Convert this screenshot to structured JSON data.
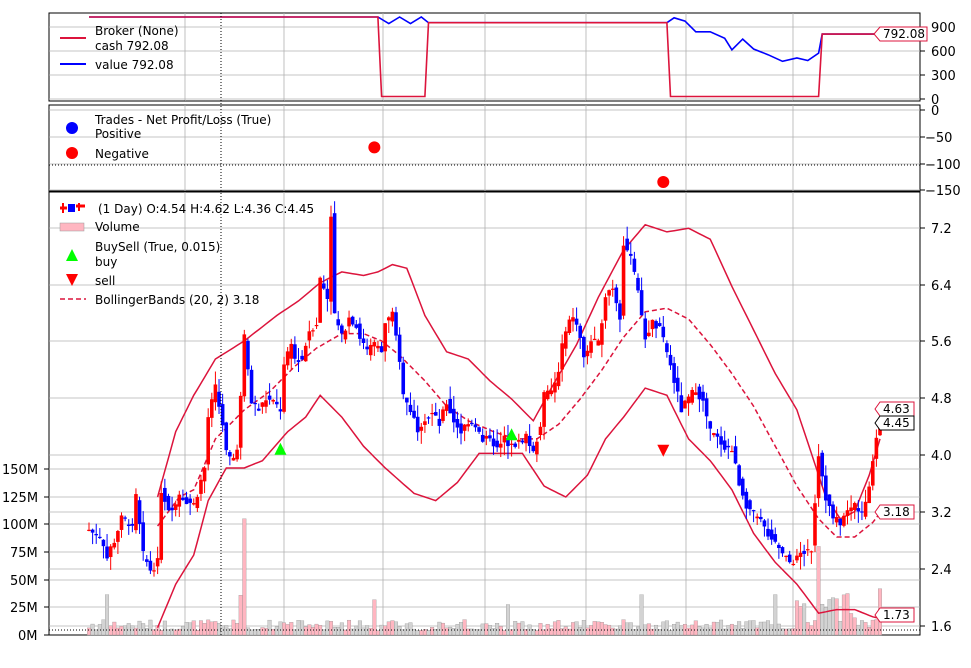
{
  "colors": {
    "up": "#ff0000",
    "down": "#0000ff",
    "bands": "#dc143c",
    "cash": "#dc143c",
    "value": "#0000ff",
    "buy": "#00ff00",
    "sell": "#ff0000",
    "positive": "#0000ff",
    "negative": "#ff0000",
    "grid": "#b0b0b0",
    "vol_up": "#ffb6c1",
    "vol_down": "#d3d3d3"
  },
  "chart_data": [
    {
      "type": "line",
      "panel": "broker",
      "series": [
        {
          "name": "cash 792.08",
          "color": "cash"
        },
        {
          "name": "value 792.08",
          "color": "value"
        }
      ],
      "legend": {
        "title": "Broker (None)",
        "items": [
          "cash 792.08",
          "value 792.08"
        ]
      },
      "last_value_tag": "792.08",
      "yticks": [
        "900",
        "600",
        "300",
        "0"
      ],
      "ylim": [
        0,
        1000
      ]
    },
    {
      "type": "scatter",
      "panel": "trades",
      "legend": {
        "title": "Trades - Net Profit/Loss (True)",
        "items": [
          "Positive",
          "Negative"
        ]
      },
      "points": [
        {
          "x": 79,
          "y": -70,
          "kind": "negative"
        },
        {
          "x": 159,
          "y": -135,
          "kind": "negative"
        }
      ],
      "yticks": [
        "0",
        "−50",
        "−100",
        "−150"
      ],
      "ylim": [
        -160,
        0
      ]
    },
    {
      "type": "candlestick",
      "panel": "price",
      "legend": {
        "ohlc": "(1 Day) O:4.54 H:4.62 L:4.36 C:4.45",
        "volume": "Volume",
        "buysell": "BuySell (True, 0.015)",
        "buy": "buy",
        "sell": "sell",
        "bollinger": "BollingerBands (20, 2) 3.18"
      },
      "price_yticks": [
        "7.2",
        "6.4",
        "5.6",
        "4.8",
        "4.0",
        "3.2",
        "2.4",
        "1.6"
      ],
      "volume_yticks": [
        "150M",
        "125M",
        "100M",
        "75M",
        "50M",
        "25M",
        "0M"
      ],
      "ylim": [
        1.5,
        7.6
      ],
      "volume_ylim": [
        0,
        160
      ],
      "tags": {
        "high": "4.63",
        "close": "4.45",
        "mid_band": "3.18",
        "low_band": "1.73"
      },
      "buy_markers": [
        {
          "x": 53,
          "y": 4.05
        },
        {
          "x": 117,
          "y": 4.25
        }
      ],
      "sell_markers": [
        {
          "x": 159,
          "y": 4.05
        }
      ],
      "price_anchors": [
        [
          0,
          2.95
        ],
        [
          3,
          2.85
        ],
        [
          5,
          2.6
        ],
        [
          7,
          2.8
        ],
        [
          9,
          3.1
        ],
        [
          11,
          3.05
        ],
        [
          12,
          2.95
        ],
        [
          13,
          3.4
        ],
        [
          15,
          2.6
        ],
        [
          17,
          2.4
        ],
        [
          19,
          2.5
        ],
        [
          20,
          3.5
        ],
        [
          22,
          3.25
        ],
        [
          24,
          3.3
        ],
        [
          25,
          3.45
        ],
        [
          27,
          3.35
        ],
        [
          29,
          3.3
        ],
        [
          30,
          3.45
        ],
        [
          32,
          3.8
        ],
        [
          33,
          4.5
        ],
        [
          35,
          4.9
        ],
        [
          37,
          4.4
        ],
        [
          38,
          4.0
        ],
        [
          39,
          3.9
        ],
        [
          41,
          4.05
        ],
        [
          43,
          5.6
        ],
        [
          45,
          4.7
        ],
        [
          47,
          4.6
        ],
        [
          49,
          4.75
        ],
        [
          51,
          4.7
        ],
        [
          53,
          4.6
        ],
        [
          54,
          5.2
        ],
        [
          56,
          5.5
        ],
        [
          57,
          5.3
        ],
        [
          59,
          5.3
        ],
        [
          61,
          5.7
        ],
        [
          63,
          5.8
        ],
        [
          64,
          6.4
        ],
        [
          66,
          6.15
        ],
        [
          67,
          7.3
        ],
        [
          68,
          5.9
        ],
        [
          70,
          5.6
        ],
        [
          72,
          5.9
        ],
        [
          74,
          5.75
        ],
        [
          75,
          5.6
        ],
        [
          77,
          5.4
        ],
        [
          79,
          5.5
        ],
        [
          81,
          5.4
        ],
        [
          82,
          5.8
        ],
        [
          84,
          5.9
        ],
        [
          86,
          5.3
        ],
        [
          87,
          4.8
        ],
        [
          89,
          4.6
        ],
        [
          91,
          4.35
        ],
        [
          93,
          4.5
        ],
        [
          95,
          4.55
        ],
        [
          97,
          4.4
        ],
        [
          99,
          4.7
        ],
        [
          101,
          4.45
        ],
        [
          103,
          4.3
        ],
        [
          105,
          4.45
        ],
        [
          107,
          4.4
        ],
        [
          109,
          4.15
        ],
        [
          111,
          4.25
        ],
        [
          113,
          4.05
        ],
        [
          115,
          4.2
        ],
        [
          117,
          4.1
        ],
        [
          119,
          4.15
        ],
        [
          121,
          4.25
        ],
        [
          123,
          4.0
        ],
        [
          125,
          4.4
        ],
        [
          126,
          4.8
        ],
        [
          128,
          4.85
        ],
        [
          130,
          5.1
        ],
        [
          131,
          5.5
        ],
        [
          133,
          5.8
        ],
        [
          134,
          5.9
        ],
        [
          136,
          5.6
        ],
        [
          137,
          5.3
        ],
        [
          139,
          5.55
        ],
        [
          141,
          5.5
        ],
        [
          143,
          6.2
        ],
        [
          145,
          6.3
        ],
        [
          147,
          5.9
        ],
        [
          148,
          6.9
        ],
        [
          150,
          6.7
        ],
        [
          152,
          6.2
        ],
        [
          154,
          5.6
        ],
        [
          156,
          5.8
        ],
        [
          158,
          5.7
        ],
        [
          160,
          5.4
        ],
        [
          162,
          5.0
        ],
        [
          164,
          4.6
        ],
        [
          166,
          4.75
        ],
        [
          168,
          4.9
        ],
        [
          170,
          4.7
        ],
        [
          172,
          4.3
        ],
        [
          174,
          4.2
        ],
        [
          176,
          4.1
        ],
        [
          178,
          4.05
        ],
        [
          180,
          3.6
        ],
        [
          182,
          3.3
        ],
        [
          184,
          3.15
        ],
        [
          186,
          3.05
        ],
        [
          188,
          2.9
        ],
        [
          190,
          2.8
        ],
        [
          192,
          2.6
        ],
        [
          194,
          2.5
        ],
        [
          196,
          2.55
        ],
        [
          198,
          2.65
        ],
        [
          200,
          2.7
        ],
        [
          202,
          4.0
        ],
        [
          204,
          3.4
        ],
        [
          206,
          3.1
        ],
        [
          208,
          3.05
        ],
        [
          210,
          3.2
        ],
        [
          212,
          3.3
        ],
        [
          214,
          3.15
        ],
        [
          216,
          3.5
        ],
        [
          217,
          3.95
        ],
        [
          219,
          4.5
        ]
      ],
      "bb_mid_anchors": [
        [
          19,
          3.0
        ],
        [
          25,
          3.4
        ],
        [
          29,
          3.5
        ],
        [
          35,
          4.2
        ],
        [
          43,
          4.6
        ],
        [
          50,
          4.85
        ],
        [
          57,
          5.2
        ],
        [
          63,
          5.45
        ],
        [
          70,
          5.65
        ],
        [
          76,
          5.65
        ],
        [
          81,
          5.55
        ],
        [
          86,
          5.35
        ],
        [
          93,
          5.0
        ],
        [
          99,
          4.65
        ],
        [
          105,
          4.45
        ],
        [
          112,
          4.3
        ],
        [
          118,
          4.2
        ],
        [
          124,
          4.2
        ],
        [
          130,
          4.4
        ],
        [
          136,
          4.75
        ],
        [
          142,
          5.15
        ],
        [
          148,
          5.6
        ],
        [
          154,
          5.95
        ],
        [
          160,
          6.0
        ],
        [
          166,
          5.85
        ],
        [
          172,
          5.5
        ],
        [
          178,
          5.1
        ],
        [
          184,
          4.65
        ],
        [
          190,
          4.1
        ],
        [
          196,
          3.55
        ],
        [
          202,
          3.1
        ],
        [
          207,
          2.85
        ],
        [
          212,
          2.85
        ],
        [
          217,
          3.05
        ],
        [
          219,
          3.18
        ]
      ],
      "bb_up_anchors": [
        [
          19,
          3.4
        ],
        [
          24,
          4.3
        ],
        [
          29,
          4.8
        ],
        [
          35,
          5.3
        ],
        [
          43,
          5.55
        ],
        [
          52,
          5.9
        ],
        [
          58,
          6.1
        ],
        [
          64,
          6.35
        ],
        [
          70,
          6.5
        ],
        [
          76,
          6.45
        ],
        [
          80,
          6.5
        ],
        [
          84,
          6.6
        ],
        [
          88,
          6.55
        ],
        [
          93,
          5.9
        ],
        [
          99,
          5.4
        ],
        [
          105,
          5.3
        ],
        [
          111,
          5.0
        ],
        [
          117,
          4.75
        ],
        [
          123,
          4.45
        ],
        [
          128,
          4.9
        ],
        [
          135,
          5.5
        ],
        [
          141,
          6.15
        ],
        [
          148,
          6.8
        ],
        [
          154,
          7.15
        ],
        [
          160,
          7.05
        ],
        [
          166,
          7.1
        ],
        [
          172,
          6.95
        ],
        [
          178,
          6.3
        ],
        [
          184,
          5.7
        ],
        [
          190,
          5.1
        ],
        [
          196,
          4.6
        ],
        [
          200,
          4.0
        ],
        [
          204,
          3.4
        ],
        [
          208,
          3.1
        ],
        [
          212,
          3.2
        ],
        [
          216,
          3.7
        ],
        [
          219,
          4.2
        ]
      ],
      "bb_lo_anchors": [
        [
          19,
          1.6
        ],
        [
          24,
          2.2
        ],
        [
          29,
          2.6
        ],
        [
          33,
          3.35
        ],
        [
          38,
          3.8
        ],
        [
          43,
          3.8
        ],
        [
          48,
          3.9
        ],
        [
          55,
          4.3
        ],
        [
          60,
          4.5
        ],
        [
          64,
          4.8
        ],
        [
          70,
          4.5
        ],
        [
          76,
          4.1
        ],
        [
          82,
          3.8
        ],
        [
          90,
          3.45
        ],
        [
          96,
          3.35
        ],
        [
          102,
          3.6
        ],
        [
          108,
          4.0
        ],
        [
          114,
          4.0
        ],
        [
          120,
          4.0
        ],
        [
          126,
          3.55
        ],
        [
          132,
          3.4
        ],
        [
          138,
          3.7
        ],
        [
          143,
          4.2
        ],
        [
          148,
          4.5
        ],
        [
          154,
          4.9
        ],
        [
          160,
          4.8
        ],
        [
          166,
          4.2
        ],
        [
          172,
          3.9
        ],
        [
          178,
          3.5
        ],
        [
          184,
          2.9
        ],
        [
          190,
          2.5
        ],
        [
          196,
          2.2
        ],
        [
          202,
          1.8
        ],
        [
          207,
          1.85
        ],
        [
          212,
          1.85
        ],
        [
          217,
          1.75
        ],
        [
          219,
          1.73
        ]
      ],
      "cash_anchors": [
        [
          0,
          1000
        ],
        [
          80,
          1000
        ],
        [
          81,
          30
        ],
        [
          93,
          30
        ],
        [
          94,
          930
        ],
        [
          160,
          930
        ],
        [
          161,
          30
        ],
        [
          202,
          30
        ],
        [
          203,
          792
        ],
        [
          219,
          792
        ]
      ],
      "value_anchors": [
        [
          0,
          1000
        ],
        [
          80,
          1000
        ],
        [
          83,
          920
        ],
        [
          86,
          1000
        ],
        [
          89,
          920
        ],
        [
          92,
          1000
        ],
        [
          94,
          930
        ],
        [
          160,
          930
        ],
        [
          162,
          990
        ],
        [
          165,
          950
        ],
        [
          168,
          820
        ],
        [
          172,
          820
        ],
        [
          176,
          740
        ],
        [
          178,
          600
        ],
        [
          181,
          730
        ],
        [
          184,
          610
        ],
        [
          188,
          540
        ],
        [
          192,
          460
        ],
        [
          196,
          500
        ],
        [
          199,
          470
        ],
        [
          202,
          560
        ],
        [
          203,
          792
        ],
        [
          219,
          792
        ]
      ]
    }
  ]
}
